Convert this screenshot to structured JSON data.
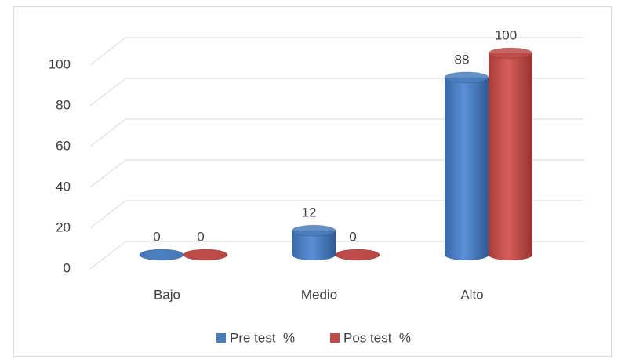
{
  "chart_data": {
    "type": "bar3d",
    "categories": [
      "Bajo",
      "Medio",
      "Alto"
    ],
    "series": [
      {
        "name": "Pre test  %",
        "color": "#4a7ebb",
        "values": [
          0,
          12,
          88
        ]
      },
      {
        "name": "Pos test  %",
        "color": "#be4b48",
        "values": [
          0,
          0,
          100
        ]
      }
    ],
    "ylim": [
      0,
      100
    ],
    "yticks": [
      0,
      20,
      40,
      60,
      80,
      100
    ],
    "grid": true,
    "legend": "bottom"
  }
}
